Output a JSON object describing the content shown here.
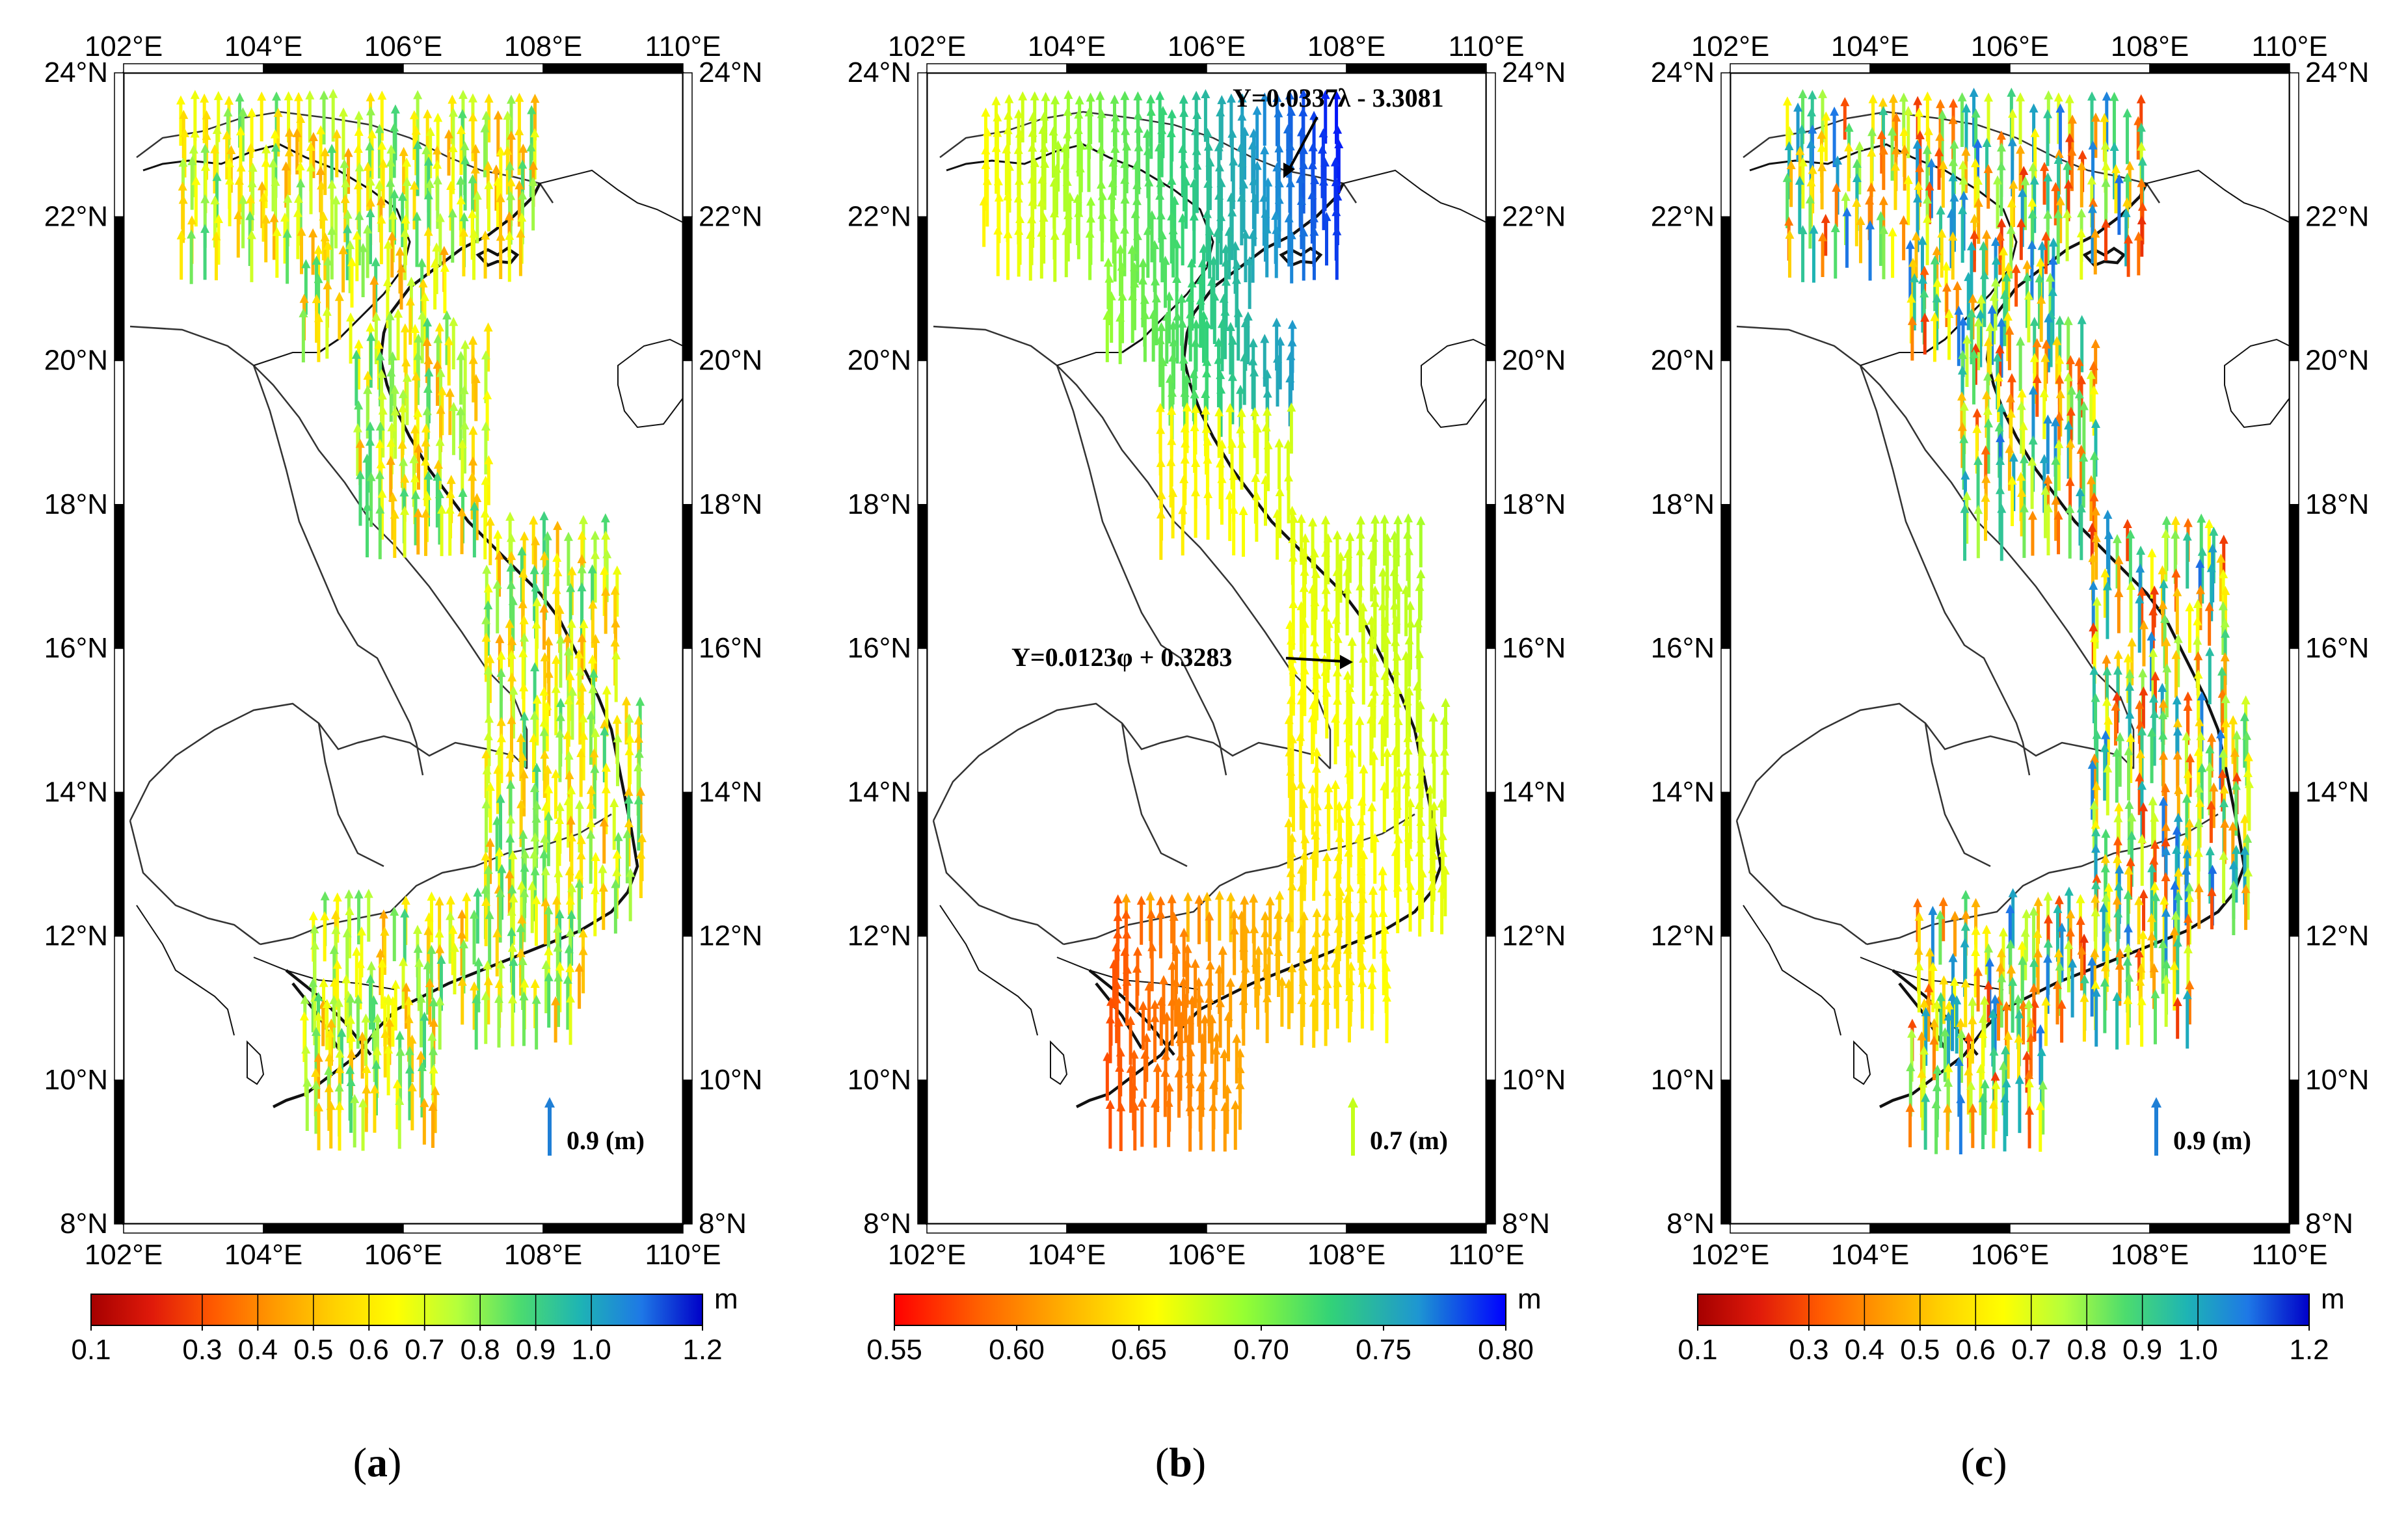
{
  "figure": {
    "lon_labels": [
      "102°E",
      "104°E",
      "106°E",
      "108°E",
      "110°E"
    ],
    "lat_labels": [
      "24°N",
      "22°N",
      "20°N",
      "18°N",
      "16°N",
      "14°N",
      "12°N",
      "10°N",
      "8°N"
    ],
    "colorbar_unit": "m"
  },
  "panels": [
    {
      "caption_letter": "a",
      "reference_arrow_label": "0.9 (m)",
      "reference_arrow_value": 0.9,
      "reference_arrow_color": "#1f7fd6",
      "colorbar": {
        "min": 0.1,
        "max": 1.2,
        "ticks": [
          0.1,
          0.3,
          0.4,
          0.5,
          0.6,
          0.7,
          0.8,
          0.9,
          1.0,
          1.2
        ],
        "tick_labels": [
          "0.1",
          "0.3",
          "0.4",
          "0.5",
          "0.6",
          "0.7",
          "0.8",
          "0.9",
          "1.0",
          "1.2"
        ],
        "colors": [
          "#a50000",
          "#e01a0a",
          "#ff5a00",
          "#ff9a00",
          "#ffd200",
          "#ffff00",
          "#b4ff3c",
          "#4cdc6e",
          "#1eb4b4",
          "#1e78e6",
          "#0000c8"
        ],
        "discrete": true
      }
    },
    {
      "caption_letter": "b",
      "reference_arrow_label": "0.7 (m)",
      "reference_arrow_value": 0.7,
      "reference_arrow_color": "#c4ff1a",
      "equation_top": "Y=0.0337λ - 3.3081",
      "equation_mid": "Y=0.0123φ + 0.3283",
      "colorbar": {
        "min": 0.55,
        "max": 0.8,
        "ticks": [
          0.55,
          0.6,
          0.65,
          0.7,
          0.75,
          0.8
        ],
        "tick_labels": [
          "0.55",
          "0.60",
          "0.65",
          "0.70",
          "0.75",
          "0.80"
        ],
        "colors": [
          "#ff0000",
          "#ff6400",
          "#ffb400",
          "#ffff00",
          "#96ff32",
          "#32d278",
          "#1e96d2",
          "#0000ff"
        ],
        "discrete": false
      }
    },
    {
      "caption_letter": "c",
      "reference_arrow_label": "0.9 (m)",
      "reference_arrow_value": 0.9,
      "reference_arrow_color": "#1f7fd6",
      "colorbar": {
        "min": 0.1,
        "max": 1.2,
        "ticks": [
          0.1,
          0.3,
          0.4,
          0.5,
          0.6,
          0.7,
          0.8,
          0.9,
          1.0,
          1.2
        ],
        "tick_labels": [
          "0.1",
          "0.3",
          "0.4",
          "0.5",
          "0.6",
          "0.7",
          "0.8",
          "0.9",
          "1.0",
          "1.2"
        ],
        "colors": [
          "#a50000",
          "#e01a0a",
          "#ff5a00",
          "#ff9a00",
          "#ffd200",
          "#ffff00",
          "#b4ff3c",
          "#4cdc6e",
          "#1eb4b4",
          "#1e78e6",
          "#0000c8"
        ],
        "discrete": true
      }
    }
  ]
}
